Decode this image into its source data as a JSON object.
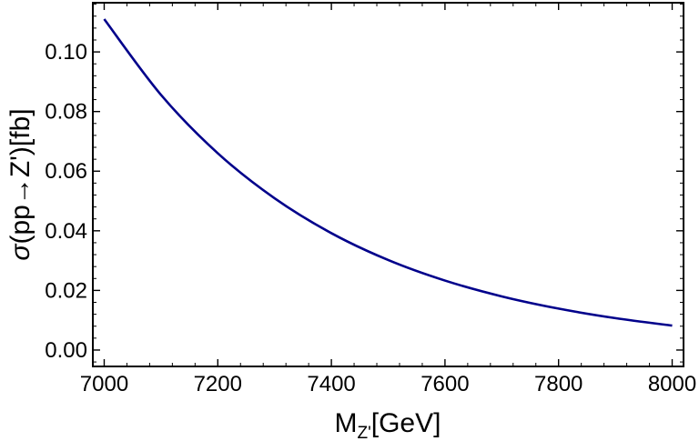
{
  "chart_data": {
    "type": "line",
    "title": "",
    "xlabel": {
      "main": "M",
      "sub": "Z'",
      "rest": "[GeV]"
    },
    "ylabel": {
      "symbol": "σ",
      "rest": "(pp→Z')[fb]"
    },
    "xlim": [
      6980,
      8020
    ],
    "ylim": [
      -0.0055,
      0.1165
    ],
    "x_ticks": [
      7000,
      7200,
      7400,
      7600,
      7800,
      8000
    ],
    "x_tick_labels": [
      "7000",
      "7200",
      "7400",
      "7600",
      "7800",
      "8000"
    ],
    "y_ticks": [
      0.0,
      0.02,
      0.04,
      0.06,
      0.08,
      0.1
    ],
    "y_tick_labels": [
      "0.00",
      "0.02",
      "0.04",
      "0.06",
      "0.08",
      "0.10"
    ],
    "grid": false,
    "legend": "none",
    "series": [
      {
        "color": "#00008b",
        "x": [
          7000,
          7100,
          7200,
          7300,
          7400,
          7500,
          7600,
          7700,
          7800,
          7900,
          8000
        ],
        "y": [
          0.111,
          0.0856,
          0.066,
          0.0509,
          0.0392,
          0.0302,
          0.0233,
          0.018,
          0.0139,
          0.0107,
          0.0082
        ]
      }
    ]
  }
}
